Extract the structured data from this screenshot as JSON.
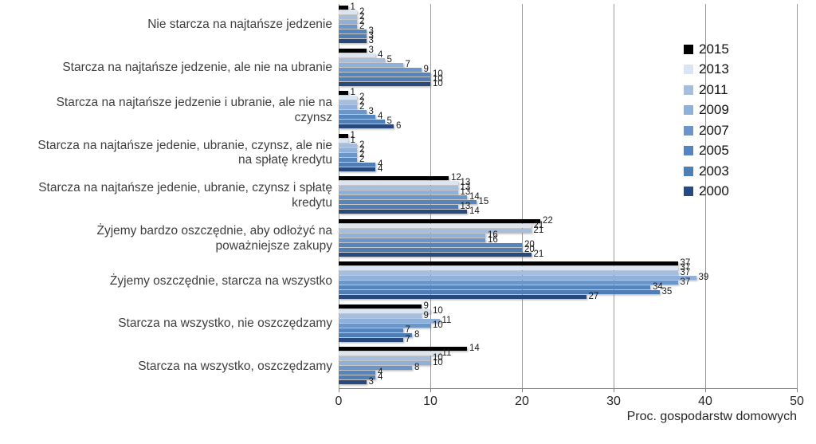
{
  "chart_data": {
    "type": "bar",
    "orientation": "horizontal",
    "title": "",
    "xlabel": "Proc. gospodarstw domowych",
    "xlim": [
      0,
      50
    ],
    "xticks": [
      0,
      10,
      20,
      30,
      40,
      50
    ],
    "grid": "vertical",
    "legend_position": "right",
    "categories": [
      "Nie starcza na najtańsze jedzenie",
      "Starcza na najtańsze jedzenie, ale nie na ubranie",
      "Starcza na najtańsze jedzenie i ubranie, ale nie na czynsz",
      "Starcza na najtańsze jedenie, ubranie, czynsz, ale nie na spłatę kredytu",
      "Starcza na najtańsze jedenie, ubranie, czynsz i spłatę kredytu",
      "Żyjemy bardzo oszczędnie, aby odłożyć na poważniejsze zakupy",
      "Żyjemy oszczędnie, starcza na wszystko",
      "Starcza na wszystko, nie oszczędzamy",
      "Starcza na wszystko, oszczędzamy"
    ],
    "series": [
      {
        "name": "2015",
        "color": "#000000",
        "values": [
          1,
          3,
          1,
          1,
          12,
          22,
          37,
          9,
          14
        ]
      },
      {
        "name": "2013",
        "color": "#dbe5f1",
        "values": [
          2,
          4,
          2,
          1,
          13,
          21,
          37,
          10,
          11
        ]
      },
      {
        "name": "2011",
        "color": "#a6bddc",
        "values": [
          2,
          5,
          2,
          2,
          13,
          21,
          37,
          9,
          10
        ]
      },
      {
        "name": "2009",
        "color": "#8eb0d9",
        "values": [
          2,
          7,
          2,
          2,
          13,
          16,
          39,
          11,
          10
        ]
      },
      {
        "name": "2007",
        "color": "#6d96c8",
        "values": [
          2,
          9,
          3,
          2,
          14,
          16,
          37,
          10,
          8
        ]
      },
      {
        "name": "2005",
        "color": "#5585bc",
        "values": [
          3,
          10,
          4,
          2,
          15,
          20,
          34,
          7,
          4
        ]
      },
      {
        "name": "2003",
        "color": "#4f7db4",
        "values": [
          3,
          10,
          5,
          4,
          13,
          20,
          35,
          8,
          4
        ]
      },
      {
        "name": "2000",
        "color": "#27497b",
        "values": [
          3,
          10,
          6,
          4,
          14,
          21,
          27,
          7,
          3
        ]
      }
    ]
  }
}
